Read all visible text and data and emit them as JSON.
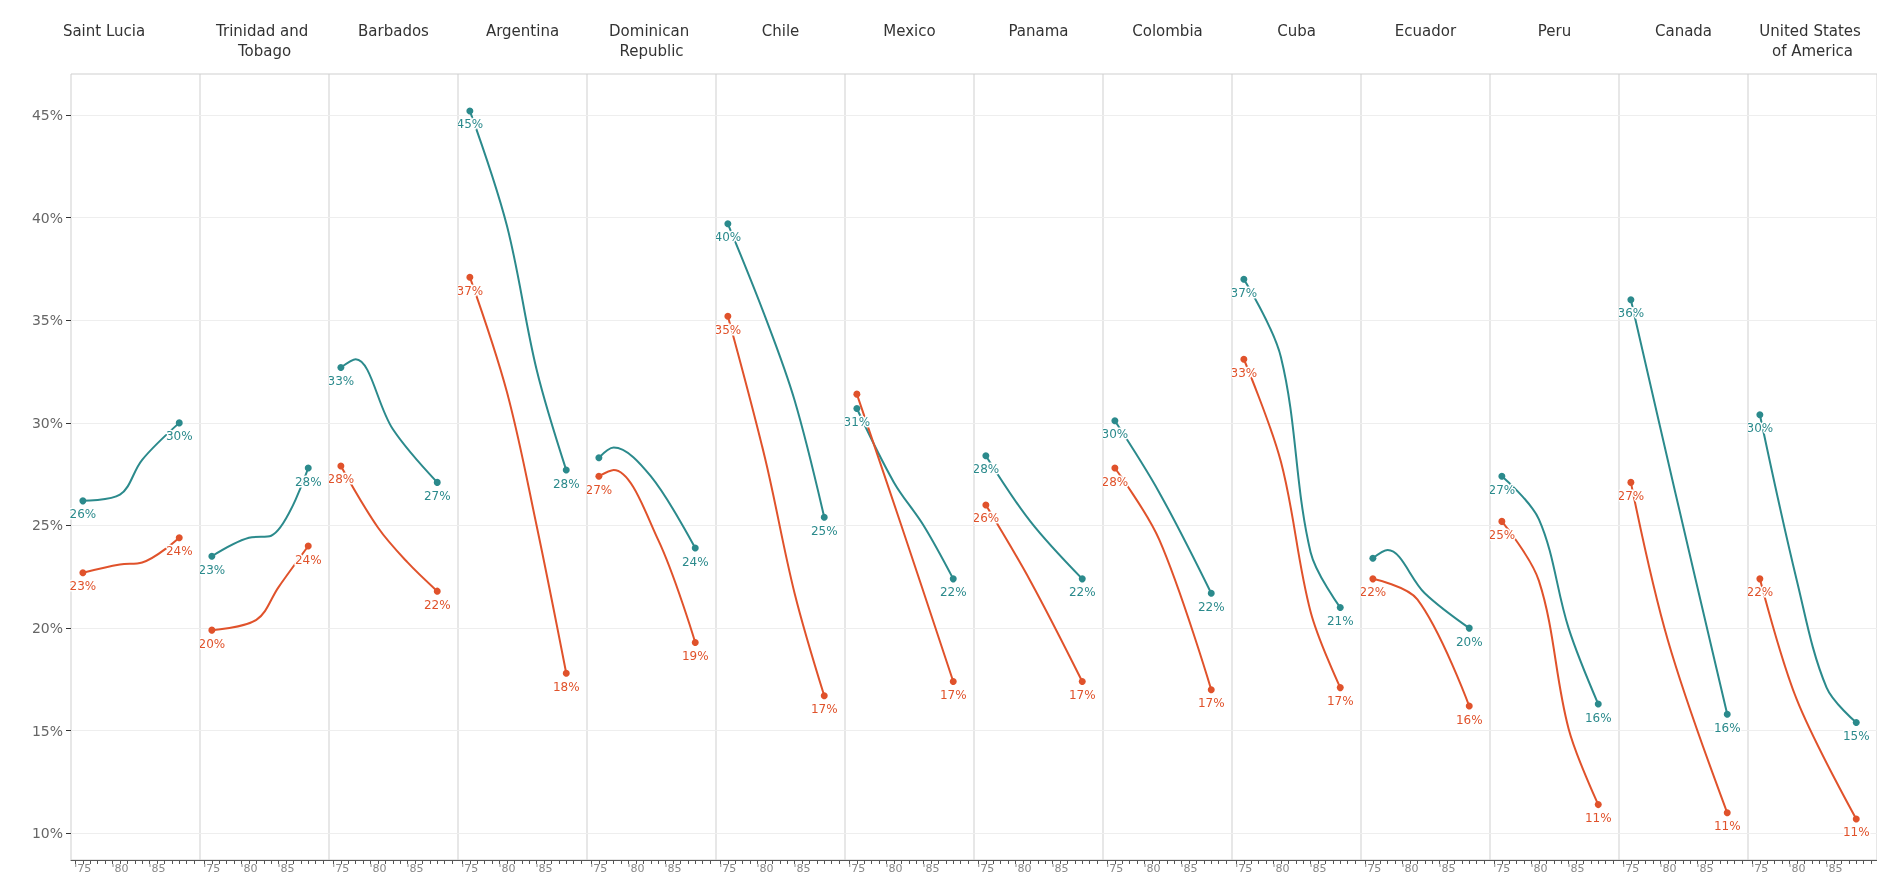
{
  "chart_data": [
    {
      "type": "line",
      "title": "Saint Lucia",
      "xlim": [
        1973.4,
        1990.8
      ],
      "xticks": [
        {
          "value": 1974,
          "label": null
        },
        {
          "value": 1975,
          "label": "'75"
        },
        {
          "value": 1976,
          "label": null
        },
        {
          "value": 1977,
          "label": null
        },
        {
          "value": 1978,
          "label": null
        },
        {
          "value": 1979,
          "label": null
        },
        {
          "value": 1980,
          "label": "'80"
        },
        {
          "value": 1981,
          "label": null
        },
        {
          "value": 1982,
          "label": null
        },
        {
          "value": 1983,
          "label": null
        },
        {
          "value": 1984,
          "label": null
        },
        {
          "value": 1985,
          "label": "'85"
        },
        {
          "value": 1986,
          "label": null
        },
        {
          "value": 1987,
          "label": null
        },
        {
          "value": 1988,
          "label": null
        },
        {
          "value": 1989,
          "label": null
        },
        {
          "value": 1990,
          "label": null
        }
      ],
      "ylim": [
        8.7,
        47
      ],
      "yticks": [
        {
          "value": 10,
          "label": "10%"
        },
        {
          "value": 15,
          "label": "15%"
        },
        {
          "value": 20,
          "label": "20%"
        },
        {
          "value": 25,
          "label": "25%"
        },
        {
          "value": 30,
          "label": "30%"
        },
        {
          "value": 35,
          "label": "35%"
        },
        {
          "value": 40,
          "label": "40%"
        },
        {
          "value": 45,
          "label": "45%"
        }
      ],
      "grid": "y",
      "marker": "circle",
      "series": [
        {
          "color": "#2b8a8c",
          "x": [
            1975,
            1980,
            1983,
            1988
          ],
          "values": [
            26.2,
            26.5,
            28.2,
            30.0
          ],
          "value_labels": [
            "26%",
            null,
            null,
            "30%"
          ]
        },
        {
          "color": "#e0522b",
          "x": [
            1975,
            1980,
            1983,
            1988
          ],
          "values": [
            22.7,
            23.1,
            23.2,
            24.4
          ],
          "value_labels": [
            "23%",
            null,
            null,
            "24%"
          ]
        }
      ]
    },
    {
      "type": "line",
      "title": "Trinidad and Tobago",
      "tick_labels": "x",
      "xlim": [
        1973.4,
        1990.8
      ],
      "xticks": [
        {
          "value": 1974,
          "label": null
        },
        {
          "value": 1975,
          "label": "'75"
        },
        {
          "value": 1976,
          "label": null
        },
        {
          "value": 1977,
          "label": null
        },
        {
          "value": 1978,
          "label": null
        },
        {
          "value": 1979,
          "label": null
        },
        {
          "value": 1980,
          "label": "'80"
        },
        {
          "value": 1981,
          "label": null
        },
        {
          "value": 1982,
          "label": null
        },
        {
          "value": 1983,
          "label": null
        },
        {
          "value": 1984,
          "label": null
        },
        {
          "value": 1985,
          "label": "'85"
        },
        {
          "value": 1986,
          "label": null
        },
        {
          "value": 1987,
          "label": null
        },
        {
          "value": 1988,
          "label": null
        },
        {
          "value": 1989,
          "label": null
        },
        {
          "value": 1990,
          "label": null
        }
      ],
      "ylim": [
        8.7,
        47
      ],
      "yticks": [
        {
          "value": 10,
          "label": null
        },
        {
          "value": 15,
          "label": null
        },
        {
          "value": 20,
          "label": null
        },
        {
          "value": 25,
          "label": null
        },
        {
          "value": 30,
          "label": null
        },
        {
          "value": 35,
          "label": null
        },
        {
          "value": 40,
          "label": null
        },
        {
          "value": 45,
          "label": null
        }
      ],
      "grid": "y",
      "marker": "circle",
      "series": [
        {
          "color": "#2b8a8c",
          "x": [
            1975,
            1980,
            1983,
            1988
          ],
          "values": [
            23.5,
            24.4,
            24.5,
            27.8
          ],
          "value_labels": [
            "23%",
            null,
            null,
            "28%"
          ]
        },
        {
          "color": "#e0522b",
          "x": [
            1975,
            1981,
            1984,
            1988
          ],
          "values": [
            19.9,
            20.4,
            22.0,
            24.0
          ],
          "value_labels": [
            "20%",
            null,
            null,
            "24%"
          ]
        }
      ]
    },
    {
      "type": "line",
      "title": "Barbados",
      "tick_labels": "x",
      "xlim": [
        1973.4,
        1990.8
      ],
      "xticks": [
        {
          "value": 1974,
          "label": null
        },
        {
          "value": 1975,
          "label": "'75"
        },
        {
          "value": 1976,
          "label": null
        },
        {
          "value": 1977,
          "label": null
        },
        {
          "value": 1978,
          "label": null
        },
        {
          "value": 1979,
          "label": null
        },
        {
          "value": 1980,
          "label": "'80"
        },
        {
          "value": 1981,
          "label": null
        },
        {
          "value": 1982,
          "label": null
        },
        {
          "value": 1983,
          "label": null
        },
        {
          "value": 1984,
          "label": null
        },
        {
          "value": 1985,
          "label": "'85"
        },
        {
          "value": 1986,
          "label": null
        },
        {
          "value": 1987,
          "label": null
        },
        {
          "value": 1988,
          "label": null
        },
        {
          "value": 1989,
          "label": null
        },
        {
          "value": 1990,
          "label": null
        }
      ],
      "ylim": [
        8.7,
        47
      ],
      "yticks": [
        {
          "value": 10,
          "label": null
        },
        {
          "value": 15,
          "label": null
        },
        {
          "value": 20,
          "label": null
        },
        {
          "value": 25,
          "label": null
        },
        {
          "value": 30,
          "label": null
        },
        {
          "value": 35,
          "label": null
        },
        {
          "value": 40,
          "label": null
        },
        {
          "value": 45,
          "label": null
        }
      ],
      "grid": "y",
      "marker": "circle",
      "series": [
        {
          "color": "#2b8a8c",
          "x": [
            1975,
            1977,
            1982,
            1988
          ],
          "values": [
            32.7,
            33.1,
            29.7,
            27.1
          ],
          "value_labels": [
            "33%",
            null,
            null,
            "27%"
          ]
        },
        {
          "color": "#e0522b",
          "x": [
            1975,
            1980,
            1984,
            1988
          ],
          "values": [
            27.9,
            24.9,
            23.2,
            21.8
          ],
          "value_labels": [
            "28%",
            null,
            null,
            "22%"
          ]
        }
      ]
    },
    {
      "type": "line",
      "title": "Argentina",
      "tick_labels": "x",
      "xlim": [
        1973.4,
        1990.8
      ],
      "xticks": [
        {
          "value": 1974,
          "label": null
        },
        {
          "value": 1975,
          "label": "'75"
        },
        {
          "value": 1976,
          "label": null
        },
        {
          "value": 1977,
          "label": null
        },
        {
          "value": 1978,
          "label": null
        },
        {
          "value": 1979,
          "label": null
        },
        {
          "value": 1980,
          "label": "'80"
        },
        {
          "value": 1981,
          "label": null
        },
        {
          "value": 1982,
          "label": null
        },
        {
          "value": 1983,
          "label": null
        },
        {
          "value": 1984,
          "label": null
        },
        {
          "value": 1985,
          "label": "'85"
        },
        {
          "value": 1986,
          "label": null
        },
        {
          "value": 1987,
          "label": null
        },
        {
          "value": 1988,
          "label": null
        },
        {
          "value": 1989,
          "label": null
        },
        {
          "value": 1990,
          "label": null
        }
      ],
      "ylim": [
        8.7,
        47
      ],
      "yticks": [
        {
          "value": 10,
          "label": null
        },
        {
          "value": 15,
          "label": null
        },
        {
          "value": 20,
          "label": null
        },
        {
          "value": 25,
          "label": null
        },
        {
          "value": 30,
          "label": null
        },
        {
          "value": 35,
          "label": null
        },
        {
          "value": 40,
          "label": null
        },
        {
          "value": 45,
          "label": null
        }
      ],
      "grid": "y",
      "marker": "circle",
      "series": [
        {
          "color": "#2b8a8c",
          "x": [
            1975,
            1980,
            1984,
            1988
          ],
          "values": [
            45.2,
            39.6,
            32.6,
            27.7
          ],
          "value_labels": [
            "45%",
            null,
            null,
            "28%"
          ]
        },
        {
          "color": "#e0522b",
          "x": [
            1975,
            1980,
            1984,
            1988
          ],
          "values": [
            37.1,
            31.5,
            25.0,
            17.8
          ],
          "value_labels": [
            "37%",
            null,
            null,
            "18%"
          ]
        }
      ]
    },
    {
      "type": "line",
      "title": "Dominican Republic",
      "tick_labels": "x",
      "xlim": [
        1973.4,
        1990.8
      ],
      "xticks": [
        {
          "value": 1974,
          "label": null
        },
        {
          "value": 1975,
          "label": "'75"
        },
        {
          "value": 1976,
          "label": null
        },
        {
          "value": 1977,
          "label": null
        },
        {
          "value": 1978,
          "label": null
        },
        {
          "value": 1979,
          "label": null
        },
        {
          "value": 1980,
          "label": "'80"
        },
        {
          "value": 1981,
          "label": null
        },
        {
          "value": 1982,
          "label": null
        },
        {
          "value": 1983,
          "label": null
        },
        {
          "value": 1984,
          "label": null
        },
        {
          "value": 1985,
          "label": "'85"
        },
        {
          "value": 1986,
          "label": null
        },
        {
          "value": 1987,
          "label": null
        },
        {
          "value": 1988,
          "label": null
        },
        {
          "value": 1989,
          "label": null
        },
        {
          "value": 1990,
          "label": null
        }
      ],
      "ylim": [
        8.7,
        47
      ],
      "yticks": [
        {
          "value": 10,
          "label": null
        },
        {
          "value": 15,
          "label": null
        },
        {
          "value": 20,
          "label": null
        },
        {
          "value": 25,
          "label": null
        },
        {
          "value": 30,
          "label": null
        },
        {
          "value": 35,
          "label": null
        },
        {
          "value": 40,
          "label": null
        },
        {
          "value": 45,
          "label": null
        }
      ],
      "grid": "y",
      "marker": "circle",
      "series": [
        {
          "color": "#2b8a8c",
          "x": [
            1975,
            1977,
            1982,
            1988
          ],
          "values": [
            28.3,
            28.8,
            27.4,
            23.9
          ],
          "value_labels": [
            null,
            null,
            null,
            "24%"
          ]
        },
        {
          "color": "#e0522b",
          "x": [
            1975,
            1977,
            1983,
            1988
          ],
          "values": [
            27.4,
            27.7,
            24.3,
            19.3
          ],
          "value_labels": [
            "27%",
            null,
            null,
            "19%"
          ]
        }
      ]
    },
    {
      "type": "line",
      "title": "Chile",
      "tick_labels": "x",
      "xlim": [
        1973.4,
        1990.8
      ],
      "xticks": [
        {
          "value": 1974,
          "label": null
        },
        {
          "value": 1975,
          "label": "'75"
        },
        {
          "value": 1976,
          "label": null
        },
        {
          "value": 1977,
          "label": null
        },
        {
          "value": 1978,
          "label": null
        },
        {
          "value": 1979,
          "label": null
        },
        {
          "value": 1980,
          "label": "'80"
        },
        {
          "value": 1981,
          "label": null
        },
        {
          "value": 1982,
          "label": null
        },
        {
          "value": 1983,
          "label": null
        },
        {
          "value": 1984,
          "label": null
        },
        {
          "value": 1985,
          "label": "'85"
        },
        {
          "value": 1986,
          "label": null
        },
        {
          "value": 1987,
          "label": null
        },
        {
          "value": 1988,
          "label": null
        },
        {
          "value": 1989,
          "label": null
        },
        {
          "value": 1990,
          "label": null
        }
      ],
      "ylim": [
        8.7,
        47
      ],
      "yticks": [
        {
          "value": 10,
          "label": null
        },
        {
          "value": 15,
          "label": null
        },
        {
          "value": 20,
          "label": null
        },
        {
          "value": 25,
          "label": null
        },
        {
          "value": 30,
          "label": null
        },
        {
          "value": 35,
          "label": null
        },
        {
          "value": 40,
          "label": null
        },
        {
          "value": 45,
          "label": null
        }
      ],
      "grid": "y",
      "marker": "circle",
      "series": [
        {
          "color": "#2b8a8c",
          "x": [
            1975,
            1980,
            1984,
            1988
          ],
          "values": [
            39.7,
            35.2,
            31.1,
            25.4
          ],
          "value_labels": [
            "40%",
            null,
            null,
            "25%"
          ]
        },
        {
          "color": "#e0522b",
          "x": [
            1975,
            1980,
            1984,
            1988
          ],
          "values": [
            35.2,
            28.3,
            21.7,
            16.7
          ],
          "value_labels": [
            "35%",
            null,
            null,
            "17%"
          ]
        }
      ]
    },
    {
      "type": "line",
      "title": "Mexico",
      "tick_labels": "x",
      "xlim": [
        1973.4,
        1990.8
      ],
      "xticks": [
        {
          "value": 1974,
          "label": null
        },
        {
          "value": 1975,
          "label": "'75"
        },
        {
          "value": 1976,
          "label": null
        },
        {
          "value": 1977,
          "label": null
        },
        {
          "value": 1978,
          "label": null
        },
        {
          "value": 1979,
          "label": null
        },
        {
          "value": 1980,
          "label": "'80"
        },
        {
          "value": 1981,
          "label": null
        },
        {
          "value": 1982,
          "label": null
        },
        {
          "value": 1983,
          "label": null
        },
        {
          "value": 1984,
          "label": null
        },
        {
          "value": 1985,
          "label": "'85"
        },
        {
          "value": 1986,
          "label": null
        },
        {
          "value": 1987,
          "label": null
        },
        {
          "value": 1988,
          "label": null
        },
        {
          "value": 1989,
          "label": null
        },
        {
          "value": 1990,
          "label": null
        }
      ],
      "ylim": [
        8.7,
        47
      ],
      "yticks": [
        {
          "value": 10,
          "label": null
        },
        {
          "value": 15,
          "label": null
        },
        {
          "value": 20,
          "label": null
        },
        {
          "value": 25,
          "label": null
        },
        {
          "value": 30,
          "label": null
        },
        {
          "value": 35,
          "label": null
        },
        {
          "value": 40,
          "label": null
        },
        {
          "value": 45,
          "label": null
        }
      ],
      "grid": "y",
      "marker": "circle",
      "series": [
        {
          "color": "#2b8a8c",
          "x": [
            1975,
            1980,
            1984,
            1988
          ],
          "values": [
            30.7,
            27.1,
            25.0,
            22.4
          ],
          "value_labels": [
            "31%",
            null,
            null,
            "22%"
          ]
        },
        {
          "color": "#e0522b",
          "x": [
            1975,
            1981,
            1988
          ],
          "values": [
            31.4,
            25.0,
            17.4
          ],
          "value_labels": [
            null,
            null,
            "17%"
          ]
        }
      ]
    },
    {
      "type": "line",
      "title": "Panama",
      "tick_labels": "x",
      "xlim": [
        1973.4,
        1990.8
      ],
      "xticks": [
        {
          "value": 1974,
          "label": null
        },
        {
          "value": 1975,
          "label": "'75"
        },
        {
          "value": 1976,
          "label": null
        },
        {
          "value": 1977,
          "label": null
        },
        {
          "value": 1978,
          "label": null
        },
        {
          "value": 1979,
          "label": null
        },
        {
          "value": 1980,
          "label": "'80"
        },
        {
          "value": 1981,
          "label": null
        },
        {
          "value": 1982,
          "label": null
        },
        {
          "value": 1983,
          "label": null
        },
        {
          "value": 1984,
          "label": null
        },
        {
          "value": 1985,
          "label": "'85"
        },
        {
          "value": 1986,
          "label": null
        },
        {
          "value": 1987,
          "label": null
        },
        {
          "value": 1988,
          "label": null
        },
        {
          "value": 1989,
          "label": null
        },
        {
          "value": 1990,
          "label": null
        }
      ],
      "ylim": [
        8.7,
        47
      ],
      "yticks": [
        {
          "value": 10,
          "label": null
        },
        {
          "value": 15,
          "label": null
        },
        {
          "value": 20,
          "label": null
        },
        {
          "value": 25,
          "label": null
        },
        {
          "value": 30,
          "label": null
        },
        {
          "value": 35,
          "label": null
        },
        {
          "value": 40,
          "label": null
        },
        {
          "value": 45,
          "label": null
        }
      ],
      "grid": "y",
      "marker": "circle",
      "series": [
        {
          "color": "#2b8a8c",
          "x": [
            1975,
            1981,
            1988
          ],
          "values": [
            28.4,
            25.2,
            22.4
          ],
          "value_labels": [
            "28%",
            null,
            "22%"
          ]
        },
        {
          "color": "#e0522b",
          "x": [
            1975,
            1981,
            1988
          ],
          "values": [
            26.0,
            22.3,
            17.4
          ],
          "value_labels": [
            "26%",
            null,
            "17%"
          ]
        }
      ]
    },
    {
      "type": "line",
      "title": "Colombia",
      "tick_labels": "x",
      "xlim": [
        1973.4,
        1990.8
      ],
      "xticks": [
        {
          "value": 1974,
          "label": null
        },
        {
          "value": 1975,
          "label": "'75"
        },
        {
          "value": 1976,
          "label": null
        },
        {
          "value": 1977,
          "label": null
        },
        {
          "value": 1978,
          "label": null
        },
        {
          "value": 1979,
          "label": null
        },
        {
          "value": 1980,
          "label": "'80"
        },
        {
          "value": 1981,
          "label": null
        },
        {
          "value": 1982,
          "label": null
        },
        {
          "value": 1983,
          "label": null
        },
        {
          "value": 1984,
          "label": null
        },
        {
          "value": 1985,
          "label": "'85"
        },
        {
          "value": 1986,
          "label": null
        },
        {
          "value": 1987,
          "label": null
        },
        {
          "value": 1988,
          "label": null
        },
        {
          "value": 1989,
          "label": null
        },
        {
          "value": 1990,
          "label": null
        }
      ],
      "ylim": [
        8.7,
        47
      ],
      "yticks": [
        {
          "value": 10,
          "label": null
        },
        {
          "value": 15,
          "label": null
        },
        {
          "value": 20,
          "label": null
        },
        {
          "value": 25,
          "label": null
        },
        {
          "value": 30,
          "label": null
        },
        {
          "value": 35,
          "label": null
        },
        {
          "value": 40,
          "label": null
        },
        {
          "value": 45,
          "label": null
        }
      ],
      "grid": "y",
      "marker": "circle",
      "series": [
        {
          "color": "#2b8a8c",
          "x": [
            1975,
            1981,
            1988
          ],
          "values": [
            30.1,
            26.6,
            21.7
          ],
          "value_labels": [
            "30%",
            null,
            "22%"
          ]
        },
        {
          "color": "#e0522b",
          "x": [
            1975,
            1981,
            1988
          ],
          "values": [
            27.8,
            24.3,
            17.0
          ],
          "value_labels": [
            "28%",
            null,
            "17%"
          ]
        }
      ]
    },
    {
      "type": "line",
      "title": "Cuba",
      "tick_labels": "x",
      "xlim": [
        1973.4,
        1990.8
      ],
      "xticks": [
        {
          "value": 1974,
          "label": null
        },
        {
          "value": 1975,
          "label": "'75"
        },
        {
          "value": 1976,
          "label": null
        },
        {
          "value": 1977,
          "label": null
        },
        {
          "value": 1978,
          "label": null
        },
        {
          "value": 1979,
          "label": null
        },
        {
          "value": 1980,
          "label": "'80"
        },
        {
          "value": 1981,
          "label": null
        },
        {
          "value": 1982,
          "label": null
        },
        {
          "value": 1983,
          "label": null
        },
        {
          "value": 1984,
          "label": null
        },
        {
          "value": 1985,
          "label": "'85"
        },
        {
          "value": 1986,
          "label": null
        },
        {
          "value": 1987,
          "label": null
        },
        {
          "value": 1988,
          "label": null
        },
        {
          "value": 1989,
          "label": null
        },
        {
          "value": 1990,
          "label": null
        }
      ],
      "ylim": [
        8.7,
        47
      ],
      "yticks": [
        {
          "value": 10,
          "label": null
        },
        {
          "value": 15,
          "label": null
        },
        {
          "value": 20,
          "label": null
        },
        {
          "value": 25,
          "label": null
        },
        {
          "value": 30,
          "label": null
        },
        {
          "value": 35,
          "label": null
        },
        {
          "value": 40,
          "label": null
        },
        {
          "value": 45,
          "label": null
        }
      ],
      "grid": "y",
      "marker": "circle",
      "series": [
        {
          "color": "#2b8a8c",
          "x": [
            1975,
            1980,
            1984,
            1988
          ],
          "values": [
            37.0,
            33.2,
            23.7,
            21.0
          ],
          "value_labels": [
            "37%",
            null,
            null,
            "21%"
          ]
        },
        {
          "color": "#e0522b",
          "x": [
            1975,
            1980,
            1984,
            1988
          ],
          "values": [
            33.1,
            28.1,
            20.8,
            17.1
          ],
          "value_labels": [
            "33%",
            null,
            null,
            "17%"
          ]
        }
      ]
    },
    {
      "type": "line",
      "title": "Ecuador",
      "tick_labels": "x",
      "xlim": [
        1973.4,
        1990.8
      ],
      "xticks": [
        {
          "value": 1974,
          "label": null
        },
        {
          "value": 1975,
          "label": "'75"
        },
        {
          "value": 1976,
          "label": null
        },
        {
          "value": 1977,
          "label": null
        },
        {
          "value": 1978,
          "label": null
        },
        {
          "value": 1979,
          "label": null
        },
        {
          "value": 1980,
          "label": "'80"
        },
        {
          "value": 1981,
          "label": null
        },
        {
          "value": 1982,
          "label": null
        },
        {
          "value": 1983,
          "label": null
        },
        {
          "value": 1984,
          "label": null
        },
        {
          "value": 1985,
          "label": "'85"
        },
        {
          "value": 1986,
          "label": null
        },
        {
          "value": 1987,
          "label": null
        },
        {
          "value": 1988,
          "label": null
        },
        {
          "value": 1989,
          "label": null
        },
        {
          "value": 1990,
          "label": null
        }
      ],
      "ylim": [
        8.7,
        47
      ],
      "yticks": [
        {
          "value": 10,
          "label": null
        },
        {
          "value": 15,
          "label": null
        },
        {
          "value": 20,
          "label": null
        },
        {
          "value": 25,
          "label": null
        },
        {
          "value": 30,
          "label": null
        },
        {
          "value": 35,
          "label": null
        },
        {
          "value": 40,
          "label": null
        },
        {
          "value": 45,
          "label": null
        }
      ],
      "grid": "y",
      "marker": "circle",
      "series": [
        {
          "color": "#2b8a8c",
          "x": [
            1975,
            1977,
            1982,
            1988
          ],
          "values": [
            23.4,
            23.8,
            21.7,
            20.0
          ],
          "value_labels": [
            null,
            null,
            null,
            "20%"
          ]
        },
        {
          "color": "#e0522b",
          "x": [
            1975,
            1981,
            1988
          ],
          "values": [
            22.4,
            21.4,
            16.2
          ],
          "value_labels": [
            "22%",
            null,
            "16%"
          ]
        }
      ]
    },
    {
      "type": "line",
      "title": "Peru",
      "tick_labels": "x",
      "xlim": [
        1973.4,
        1990.8
      ],
      "xticks": [
        {
          "value": 1974,
          "label": null
        },
        {
          "value": 1975,
          "label": "'75"
        },
        {
          "value": 1976,
          "label": null
        },
        {
          "value": 1977,
          "label": null
        },
        {
          "value": 1978,
          "label": null
        },
        {
          "value": 1979,
          "label": null
        },
        {
          "value": 1980,
          "label": "'80"
        },
        {
          "value": 1981,
          "label": null
        },
        {
          "value": 1982,
          "label": null
        },
        {
          "value": 1983,
          "label": null
        },
        {
          "value": 1984,
          "label": null
        },
        {
          "value": 1985,
          "label": "'85"
        },
        {
          "value": 1986,
          "label": null
        },
        {
          "value": 1987,
          "label": null
        },
        {
          "value": 1988,
          "label": null
        },
        {
          "value": 1989,
          "label": null
        },
        {
          "value": 1990,
          "label": null
        }
      ],
      "ylim": [
        8.7,
        47
      ],
      "yticks": [
        {
          "value": 10,
          "label": null
        },
        {
          "value": 15,
          "label": null
        },
        {
          "value": 20,
          "label": null
        },
        {
          "value": 25,
          "label": null
        },
        {
          "value": 30,
          "label": null
        },
        {
          "value": 35,
          "label": null
        },
        {
          "value": 40,
          "label": null
        },
        {
          "value": 45,
          "label": null
        }
      ],
      "grid": "y",
      "marker": "circle",
      "series": [
        {
          "color": "#2b8a8c",
          "x": [
            1975,
            1980,
            1984,
            1988
          ],
          "values": [
            27.4,
            25.3,
            20.0,
            16.3
          ],
          "value_labels": [
            "27%",
            null,
            null,
            "16%"
          ]
        },
        {
          "color": "#e0522b",
          "x": [
            1975,
            1980,
            1984,
            1988
          ],
          "values": [
            25.2,
            22.3,
            15.1,
            11.4
          ],
          "value_labels": [
            "25%",
            null,
            null,
            "11%"
          ]
        }
      ]
    },
    {
      "type": "line",
      "title": "Canada",
      "tick_labels": "x",
      "xlim": [
        1973.4,
        1990.8
      ],
      "xticks": [
        {
          "value": 1974,
          "label": null
        },
        {
          "value": 1975,
          "label": "'75"
        },
        {
          "value": 1976,
          "label": null
        },
        {
          "value": 1977,
          "label": null
        },
        {
          "value": 1978,
          "label": null
        },
        {
          "value": 1979,
          "label": null
        },
        {
          "value": 1980,
          "label": "'80"
        },
        {
          "value": 1981,
          "label": null
        },
        {
          "value": 1982,
          "label": null
        },
        {
          "value": 1983,
          "label": null
        },
        {
          "value": 1984,
          "label": null
        },
        {
          "value": 1985,
          "label": "'85"
        },
        {
          "value": 1986,
          "label": null
        },
        {
          "value": 1987,
          "label": null
        },
        {
          "value": 1988,
          "label": null
        },
        {
          "value": 1989,
          "label": null
        },
        {
          "value": 1990,
          "label": null
        }
      ],
      "ylim": [
        8.7,
        47
      ],
      "yticks": [
        {
          "value": 10,
          "label": null
        },
        {
          "value": 15,
          "label": null
        },
        {
          "value": 20,
          "label": null
        },
        {
          "value": 25,
          "label": null
        },
        {
          "value": 30,
          "label": null
        },
        {
          "value": 35,
          "label": null
        },
        {
          "value": 40,
          "label": null
        },
        {
          "value": 45,
          "label": null
        }
      ],
      "grid": "y",
      "marker": "circle",
      "series": [
        {
          "color": "#2b8a8c",
          "x": [
            1975,
            1981,
            1988
          ],
          "values": [
            36.0,
            26.6,
            15.8
          ],
          "value_labels": [
            "36%",
            null,
            "16%"
          ]
        },
        {
          "color": "#e0522b",
          "x": [
            1975,
            1980,
            1988
          ],
          "values": [
            27.1,
            19.4,
            11.0
          ],
          "value_labels": [
            "27%",
            null,
            "11%"
          ]
        }
      ]
    },
    {
      "type": "line",
      "title": "United States of America",
      "tick_labels": "x",
      "xlim": [
        1973.4,
        1990.8
      ],
      "xticks": [
        {
          "value": 1974,
          "label": null
        },
        {
          "value": 1975,
          "label": "'75"
        },
        {
          "value": 1976,
          "label": null
        },
        {
          "value": 1977,
          "label": null
        },
        {
          "value": 1978,
          "label": null
        },
        {
          "value": 1979,
          "label": null
        },
        {
          "value": 1980,
          "label": "'80"
        },
        {
          "value": 1981,
          "label": null
        },
        {
          "value": 1982,
          "label": null
        },
        {
          "value": 1983,
          "label": null
        },
        {
          "value": 1984,
          "label": null
        },
        {
          "value": 1985,
          "label": "'85"
        },
        {
          "value": 1986,
          "label": null
        },
        {
          "value": 1987,
          "label": null
        },
        {
          "value": 1988,
          "label": null
        },
        {
          "value": 1989,
          "label": null
        },
        {
          "value": 1990,
          "label": null
        }
      ],
      "ylim": [
        8.7,
        47
      ],
      "yticks": [
        {
          "value": 10,
          "label": null
        },
        {
          "value": 15,
          "label": null
        },
        {
          "value": 20,
          "label": null
        },
        {
          "value": 25,
          "label": null
        },
        {
          "value": 30,
          "label": null
        },
        {
          "value": 35,
          "label": null
        },
        {
          "value": 40,
          "label": null
        },
        {
          "value": 45,
          "label": null
        }
      ],
      "grid": "y",
      "marker": "circle",
      "series": [
        {
          "color": "#2b8a8c",
          "x": [
            1975,
            1980,
            1984,
            1988
          ],
          "values": [
            30.4,
            22.3,
            17.1,
            15.4
          ],
          "value_labels": [
            "30%",
            null,
            null,
            "15%"
          ]
        },
        {
          "color": "#e0522b",
          "x": [
            1975,
            1980,
            1988
          ],
          "values": [
            22.4,
            16.5,
            10.7
          ],
          "value_labels": [
            "22%",
            null,
            "11%"
          ]
        }
      ]
    }
  ]
}
